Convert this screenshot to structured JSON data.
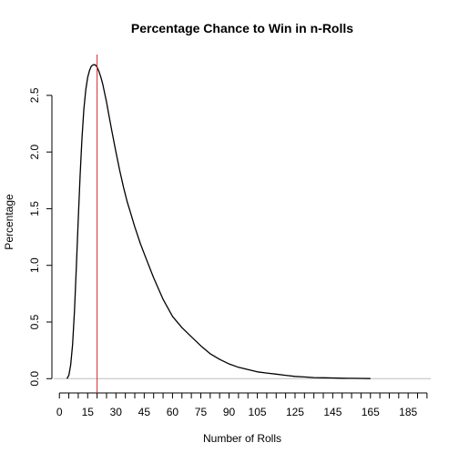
{
  "chart_data": {
    "type": "line",
    "title": "Percentage Chance to Win in n-Rolls",
    "xlabel": "Number of Rolls",
    "ylabel": "Percentage",
    "xlim": [
      -3,
      197
    ],
    "ylim": [
      -0.11,
      2.86
    ],
    "x_tick_labels": [
      0,
      15,
      30,
      45,
      60,
      75,
      90,
      105,
      125,
      145,
      165,
      185
    ],
    "x_minor_ticks": [
      0,
      5,
      10,
      15,
      20,
      25,
      30,
      35,
      40,
      45,
      50,
      55,
      60,
      65,
      70,
      75,
      80,
      85,
      90,
      95,
      100,
      105,
      110,
      115,
      120,
      125,
      130,
      135,
      140,
      145,
      150,
      155,
      160,
      165,
      170,
      175,
      180,
      185,
      190,
      195
    ],
    "y_ticks": [
      0.0,
      0.5,
      1.0,
      1.5,
      2.0,
      2.5
    ],
    "y_tick_labels": [
      "0.0",
      "0.5",
      "1.0",
      "1.5",
      "2.0",
      "2.5"
    ],
    "grid": false,
    "series": [
      {
        "color": "#000000",
        "x": [
          4,
          5,
          6,
          7,
          8,
          9,
          10,
          11,
          12,
          13,
          14,
          15,
          16,
          17,
          18,
          19,
          20,
          21,
          22,
          23,
          24,
          25,
          26,
          27,
          28,
          30,
          32,
          34,
          36,
          38,
          40,
          43,
          46,
          50,
          55,
          60,
          65,
          70,
          75,
          80,
          85,
          90,
          95,
          100,
          105,
          110,
          115,
          120,
          125,
          130,
          135,
          140,
          145,
          150,
          155,
          160,
          165
        ],
        "y": [
          0.0,
          0.03,
          0.12,
          0.3,
          0.6,
          0.98,
          1.4,
          1.8,
          2.12,
          2.38,
          2.55,
          2.66,
          2.72,
          2.76,
          2.77,
          2.77,
          2.75,
          2.71,
          2.66,
          2.6,
          2.52,
          2.44,
          2.35,
          2.26,
          2.17,
          2.0,
          1.84,
          1.69,
          1.56,
          1.45,
          1.34,
          1.19,
          1.06,
          0.89,
          0.7,
          0.55,
          0.45,
          0.37,
          0.29,
          0.22,
          0.17,
          0.13,
          0.1,
          0.08,
          0.06,
          0.05,
          0.04,
          0.03,
          0.02,
          0.015,
          0.01,
          0.008,
          0.006,
          0.004,
          0.003,
          0.002,
          0.001
        ]
      }
    ],
    "baseline": {
      "y": 0,
      "color": "#bdbdbd"
    },
    "vline": {
      "x": 20,
      "color": "#d62728"
    }
  }
}
